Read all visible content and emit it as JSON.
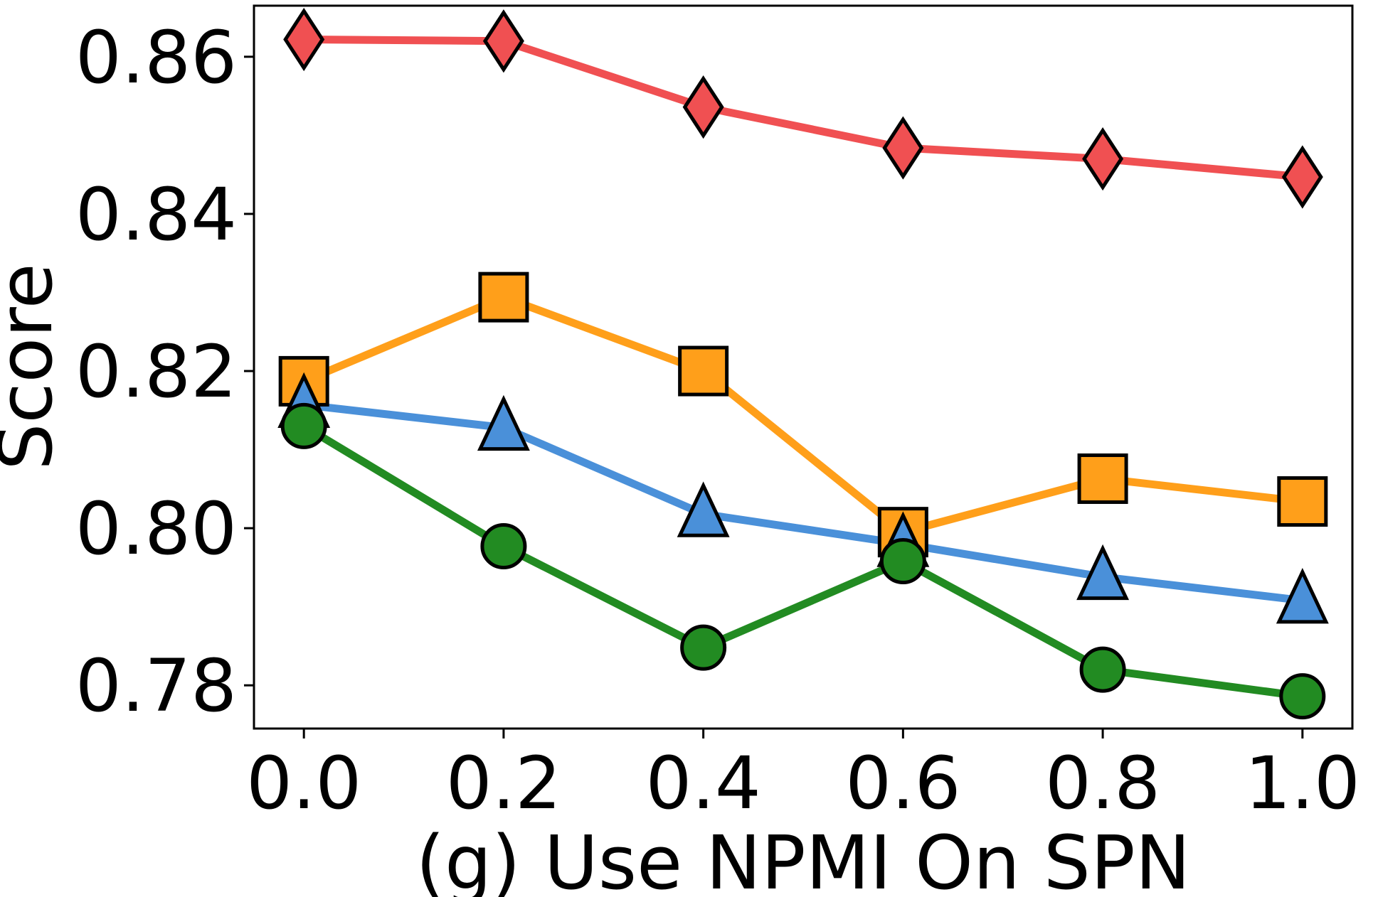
{
  "chart_data": {
    "type": "line",
    "title": "",
    "xlabel": "(g) Use NPMI On SPN",
    "ylabel": "Score",
    "x": [
      0.0,
      0.2,
      0.4,
      0.6,
      0.8,
      1.0
    ],
    "x_tick_labels": [
      "0.0",
      "0.2",
      "0.4",
      "0.6",
      "0.8",
      "1.0"
    ],
    "xlim": [
      -0.05,
      1.05
    ],
    "y_ticks": [
      0.78,
      0.8,
      0.82,
      0.84,
      0.86
    ],
    "y_tick_labels": [
      "0.78",
      "0.80",
      "0.82",
      "0.84",
      "0.86"
    ],
    "ylim": [
      0.7745,
      0.8665
    ],
    "grid": false,
    "series": [
      {
        "name": "red-diamond",
        "color": "#f05052",
        "marker": "diamond",
        "values": [
          0.8622,
          0.862,
          0.8536,
          0.8484,
          0.847,
          0.8447
        ]
      },
      {
        "name": "orange-square",
        "color": "#ff9f1a",
        "marker": "square",
        "values": [
          0.8187,
          0.8294,
          0.82,
          0.7995,
          0.8063,
          0.8034
        ]
      },
      {
        "name": "blue-triangle",
        "color": "#4a90d9",
        "marker": "triangle",
        "values": [
          0.8157,
          0.8128,
          0.8018,
          0.798,
          0.7938,
          0.7908
        ]
      },
      {
        "name": "green-circle",
        "color": "#228b22",
        "marker": "circle",
        "values": [
          0.813,
          0.7977,
          0.7848,
          0.7958,
          0.782,
          0.7786
        ]
      }
    ]
  }
}
